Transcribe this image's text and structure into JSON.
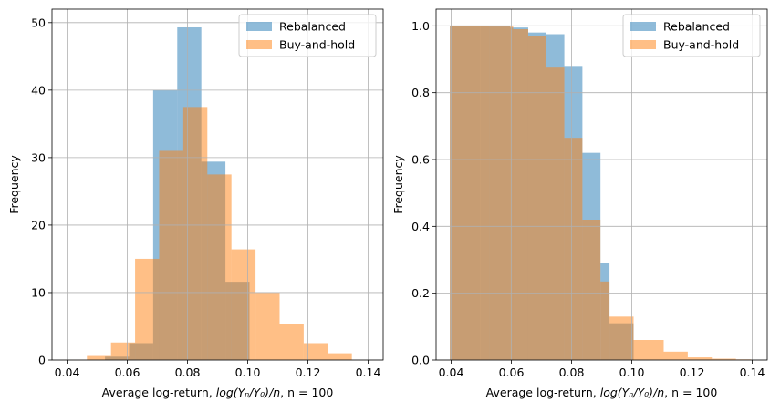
{
  "chart_data": [
    {
      "type": "bar",
      "subtype": "overlapping-histogram",
      "title": "",
      "xlabel": {
        "prefix": "Average log-return, ",
        "math": "log(Yₙ/Y₀)/n",
        "suffix": ", n = 100"
      },
      "ylabel": "Frequency",
      "xlim": [
        0.035,
        0.145
      ],
      "ylim": [
        0,
        52
      ],
      "xticks": [
        0.04,
        0.06,
        0.08,
        0.1,
        0.12,
        0.14
      ],
      "xtick_labels": [
        "0.04",
        "0.06",
        "0.08",
        "0.10",
        "0.12",
        "0.14"
      ],
      "yticks": [
        0,
        10,
        20,
        30,
        40,
        50
      ],
      "ytick_labels": [
        "0",
        "10",
        "20",
        "30",
        "40",
        "50"
      ],
      "grid": true,
      "legend": "top-right",
      "series": [
        {
          "name": "Rebalanced",
          "color": "#1f77b4",
          "opacity": 0.5,
          "bin_edges": [
            0.0526,
            0.0606,
            0.0686,
            0.0766,
            0.0846,
            0.0926,
            0.1006
          ],
          "values": [
            0.5,
            2.5,
            40,
            49.3,
            29.4,
            11.6
          ]
        },
        {
          "name": "Buy-and-hold",
          "color": "#ff7f0e",
          "opacity": 0.5,
          "bin_edges": [
            0.0386,
            0.0466,
            0.0546,
            0.0626,
            0.0706,
            0.0786,
            0.0866,
            0.0946,
            0.1026,
            0.1106,
            0.1186,
            0.1266,
            0.1346,
            0.1426
          ],
          "values": [
            0.05,
            0.6,
            2.6,
            15,
            31,
            37.5,
            27.5,
            16.4,
            10,
            5.4,
            2.5,
            1,
            0,
            0.12
          ]
        }
      ]
    },
    {
      "type": "bar",
      "subtype": "overlapping-cumulative-histogram",
      "title": "",
      "xlabel": {
        "prefix": "Average log-return, ",
        "math": "log(Yₙ/Y₀)/n",
        "suffix": ", n = 100"
      },
      "ylabel": "Frequency",
      "xlim": [
        0.035,
        0.145
      ],
      "ylim": [
        0,
        1.05
      ],
      "xticks": [
        0.04,
        0.06,
        0.08,
        0.1,
        0.12,
        0.14
      ],
      "xtick_labels": [
        "0.04",
        "0.06",
        "0.08",
        "0.10",
        "0.12",
        "0.14"
      ],
      "yticks": [
        0,
        0.2,
        0.4,
        0.6,
        0.8,
        1.0
      ],
      "ytick_labels": [
        "0.0",
        "0.2",
        "0.4",
        "0.6",
        "0.8",
        "1.0"
      ],
      "grid": true,
      "legend": "top-right",
      "series": [
        {
          "name": "Rebalanced",
          "color": "#1f77b4",
          "opacity": 0.5,
          "bin_edges": [
            0.0396,
            0.0496,
            0.0596,
            0.0656,
            0.0716,
            0.0776,
            0.0836,
            0.0896,
            0.0926,
            0.1006
          ],
          "values": [
            1.0,
            1.0,
            0.995,
            0.98,
            0.975,
            0.88,
            0.62,
            0.29,
            0.11
          ]
        },
        {
          "name": "Buy-and-hold",
          "color": "#ff7f0e",
          "opacity": 0.5,
          "bin_edges": [
            0.0396,
            0.0526,
            0.0606,
            0.0656,
            0.0716,
            0.0776,
            0.0836,
            0.0896,
            0.0926,
            0.1006,
            0.1106,
            0.1186,
            0.1266,
            0.1346,
            0.1396
          ],
          "values": [
            1.0,
            0.998,
            0.99,
            0.97,
            0.875,
            0.665,
            0.42,
            0.235,
            0.13,
            0.06,
            0.025,
            0.008,
            0.004,
            0.002
          ]
        }
      ]
    }
  ]
}
